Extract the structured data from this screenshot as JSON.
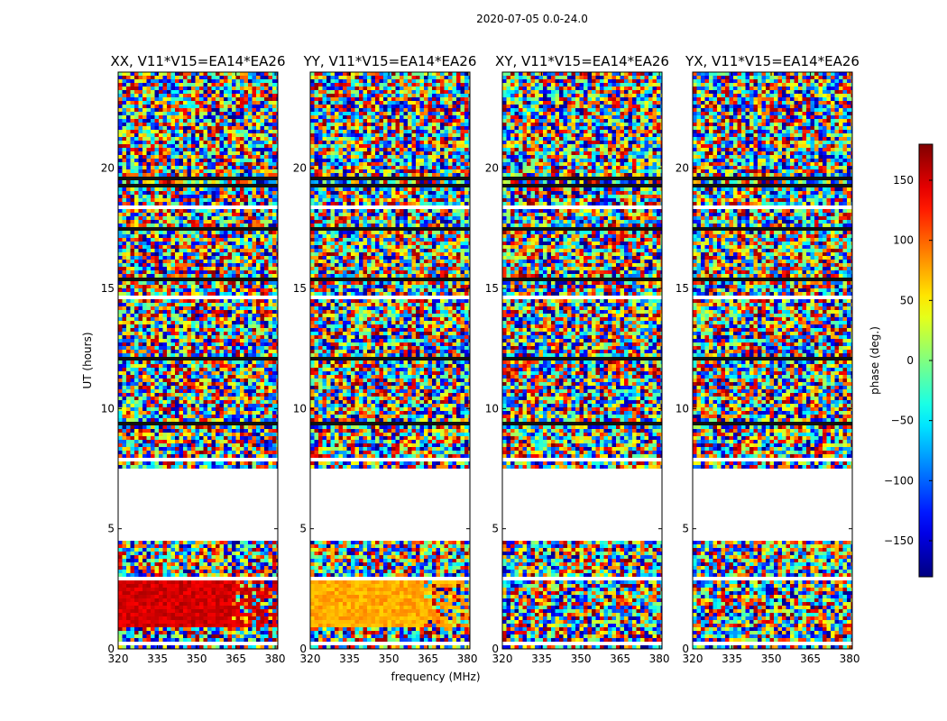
{
  "suptitle": "2020-07-05 0.0-24.0",
  "chart_data": {
    "type": "heatmap",
    "xlabel": "frequency (MHz)",
    "ylabel": "UT (hours)",
    "xlim": [
      320,
      381
    ],
    "ylim": [
      0,
      24
    ],
    "xticks": [
      320,
      335,
      350,
      365,
      380
    ],
    "yticks": [
      0,
      5,
      10,
      15,
      20
    ],
    "colorbar": {
      "label": "phase (deg.)",
      "range": [
        -180,
        180
      ],
      "ticks": [
        -150,
        -100,
        -50,
        0,
        50,
        100,
        150
      ],
      "colormap": "jet"
    },
    "panels": [
      {
        "title": "XX, V11*V15=EA14*EA26",
        "early_band_phase_deg": 150,
        "early_band_noise_over_365": true
      },
      {
        "title": "YY, V11*V15=EA14*EA26",
        "early_band_phase_deg": 75,
        "early_band_noise_over_365": true
      },
      {
        "title": "XY, V11*V15=EA14*EA26",
        "early_band_phase_deg": null,
        "early_band_noise_over_365": false
      },
      {
        "title": "YX, V11*V15=EA14*EA26",
        "early_band_phase_deg": null,
        "early_band_noise_over_365": false
      }
    ],
    "flagged_gap_ut_hours": [
      4.6,
      7.5
    ],
    "early_band_ut_hours": [
      0.9,
      2.8
    ]
  }
}
